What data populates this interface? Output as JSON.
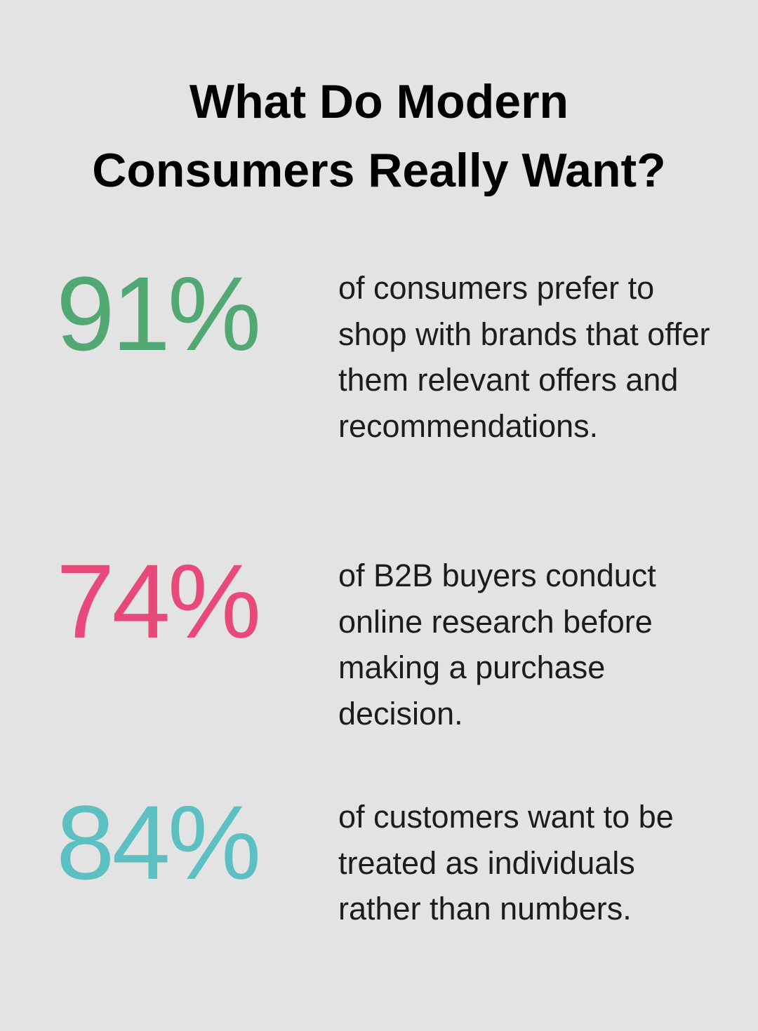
{
  "header": {
    "title": "What Do Modern Consumers Really Want?"
  },
  "stats": [
    {
      "value": "91%",
      "color": "#52a873",
      "description": "of consumers prefer to shop with brands that offer them relevant offers and recommendations."
    },
    {
      "value": "74%",
      "color": "#e8497b",
      "description": "of B2B buyers conduct online research before making a purchase decision."
    },
    {
      "value": "84%",
      "color": "#5cbfc2",
      "description": "of customers want to be treated as individuals rather than numbers."
    }
  ]
}
